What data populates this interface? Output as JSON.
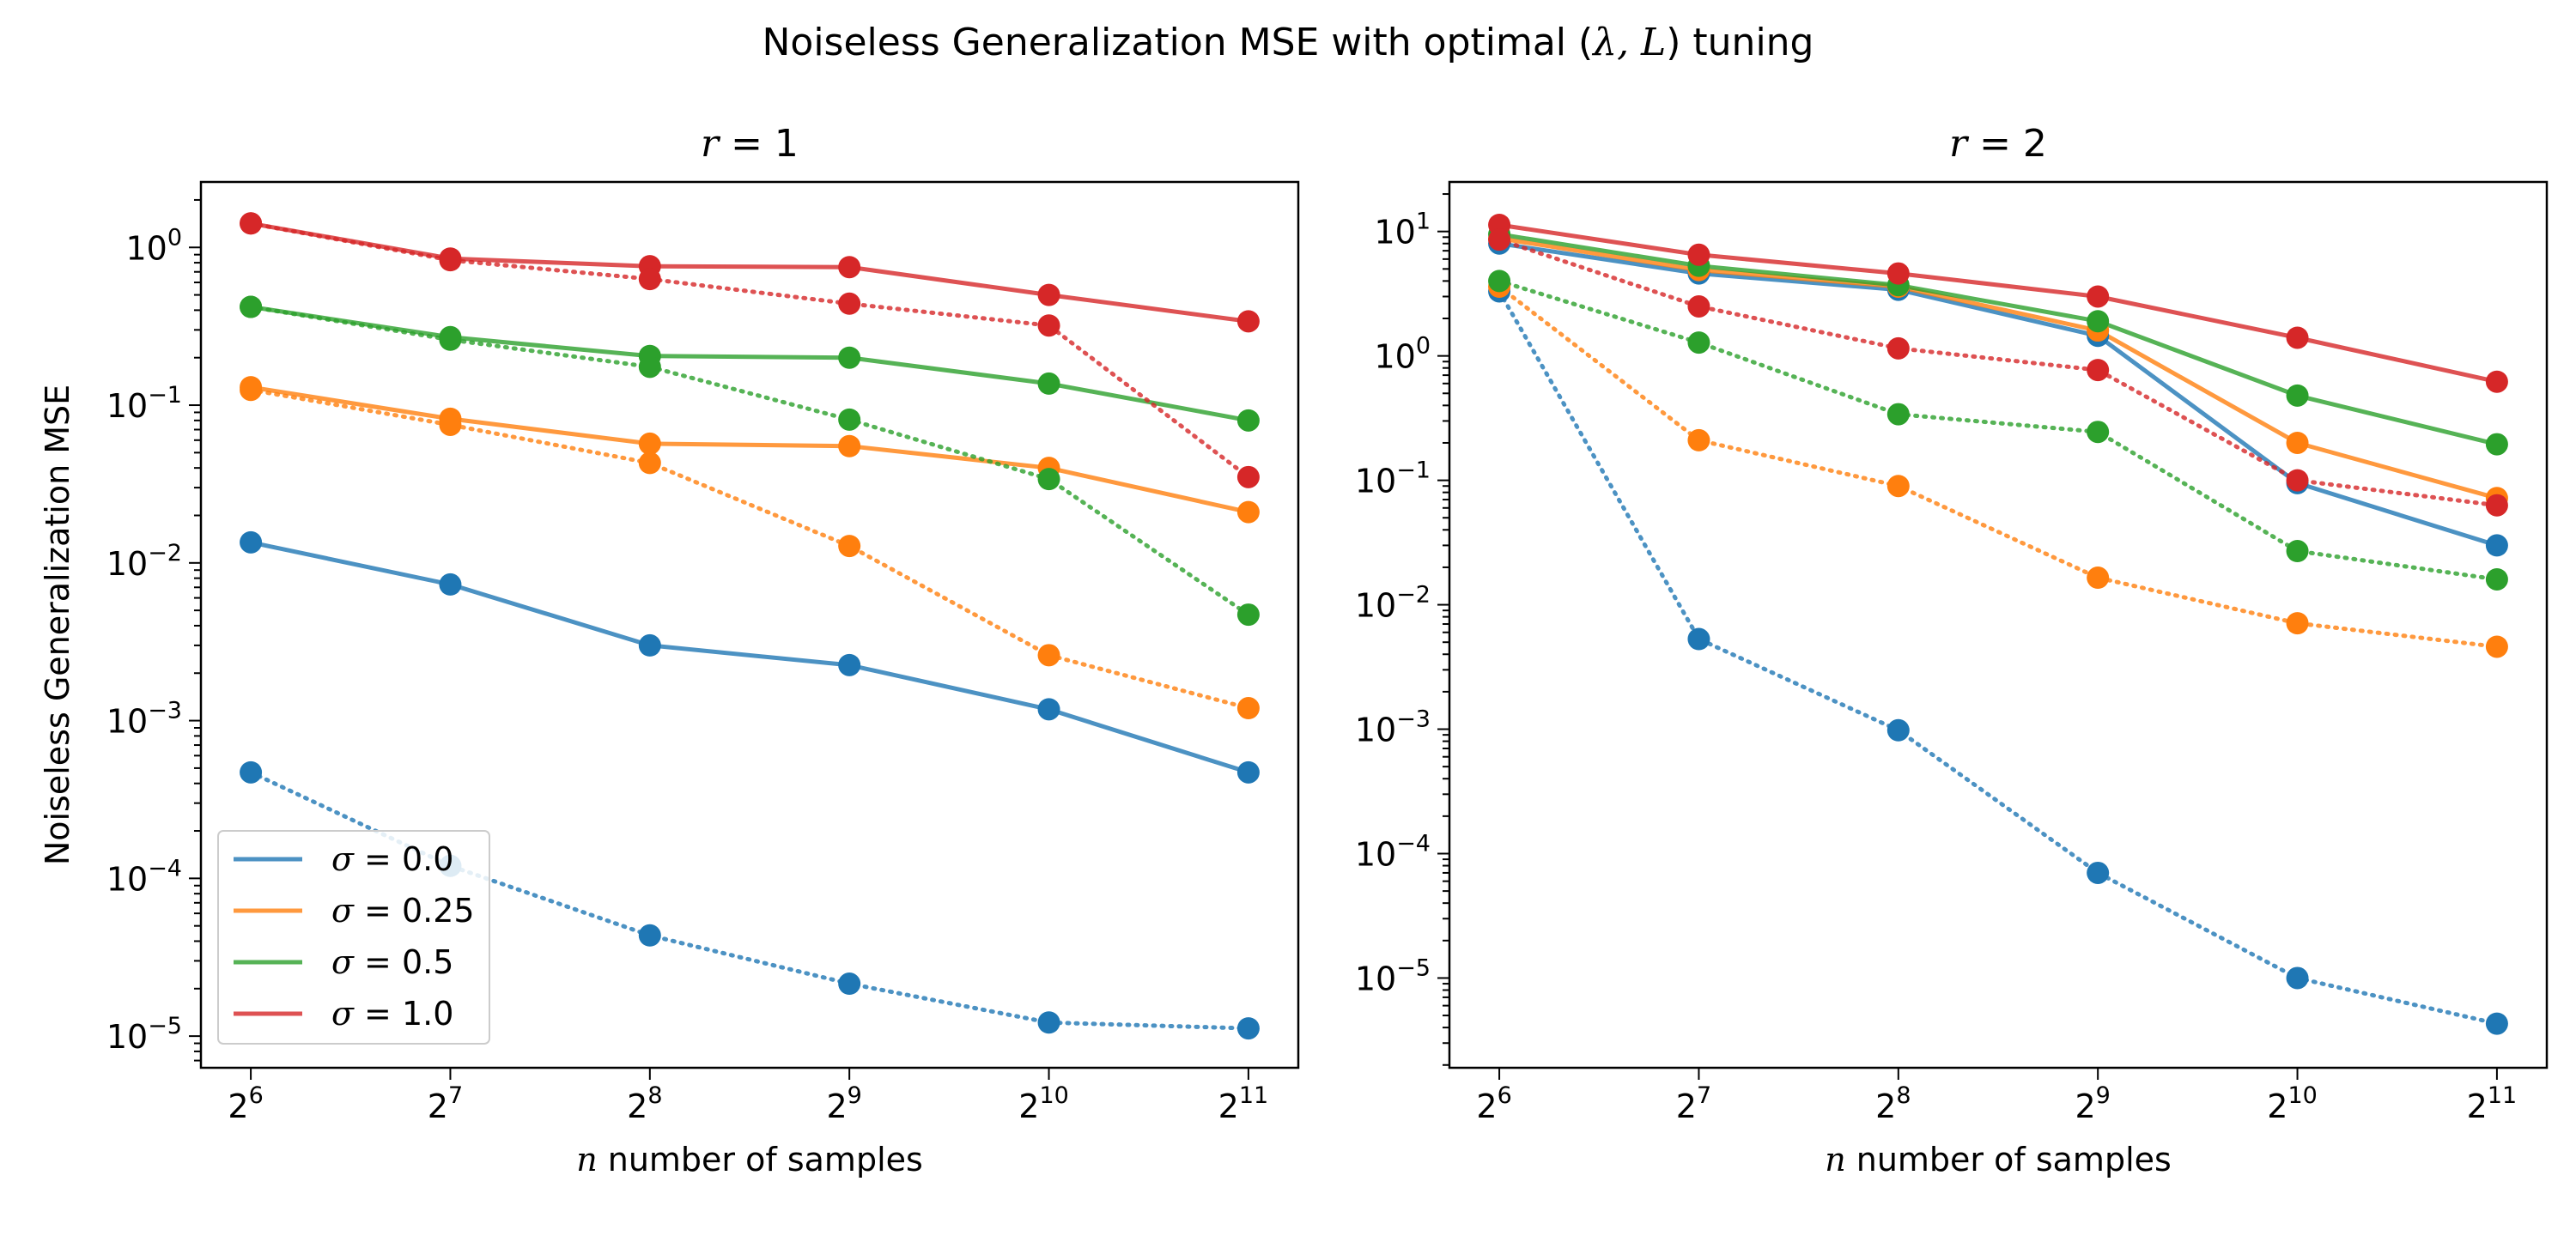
{
  "figure": {
    "suptitle_pre": "Noiseless Generalization MSE with optimal (",
    "suptitle_mid": "λ, L",
    "suptitle_post": ") tuning"
  },
  "chart_data": [
    {
      "type": "line",
      "title_var": "r",
      "title_eq": " = 1",
      "xlabel_var": "n",
      "xlabel_rest": " number of samples",
      "ylabel": "Noiseless Generalization MSE",
      "yscale": "log",
      "ylim": [
        6.3e-06,
        2.6
      ],
      "x_exponents": [
        6,
        7,
        8,
        9,
        10,
        11
      ],
      "y_tick_exponents": [
        -5,
        -4,
        -3,
        -2,
        -1,
        0
      ],
      "xscale": "log2",
      "grid": false,
      "legend_position": "lower-left",
      "legend": [
        {
          "label": " = 0.0",
          "color": "#1f77b4"
        },
        {
          "label": " = 0.25",
          "color": "#ff7f0e"
        },
        {
          "label": " = 0.5",
          "color": "#2ca02c"
        },
        {
          "label": " = 1.0",
          "color": "#d62728"
        }
      ],
      "series": [
        {
          "sigma": 0.0,
          "style": "solid",
          "color": "#1f77b4",
          "values": [
            0.0135,
            0.0073,
            0.003,
            0.00225,
            0.00118,
            0.00047
          ]
        },
        {
          "sigma": 0.25,
          "style": "solid",
          "color": "#ff7f0e",
          "values": [
            0.13,
            0.082,
            0.057,
            0.055,
            0.04,
            0.021
          ]
        },
        {
          "sigma": 0.5,
          "style": "solid",
          "color": "#2ca02c",
          "values": [
            0.42,
            0.27,
            0.205,
            0.2,
            0.137,
            0.08
          ]
        },
        {
          "sigma": 1.0,
          "style": "solid",
          "color": "#d62728",
          "values": [
            1.42,
            0.85,
            0.76,
            0.75,
            0.5,
            0.34
          ]
        },
        {
          "sigma": 0.0,
          "style": "dotted",
          "color": "#1f77b4",
          "values": [
            0.00047,
            0.00012,
            4.35e-05,
            2.15e-05,
            1.22e-05,
            1.12e-05
          ]
        },
        {
          "sigma": 0.25,
          "style": "dotted",
          "color": "#ff7f0e",
          "values": [
            0.125,
            0.075,
            0.043,
            0.0128,
            0.0026,
            0.0012
          ]
        },
        {
          "sigma": 0.5,
          "style": "dotted",
          "color": "#2ca02c",
          "values": [
            0.42,
            0.26,
            0.175,
            0.081,
            0.034,
            0.0047
          ]
        },
        {
          "sigma": 1.0,
          "style": "dotted",
          "color": "#d62728",
          "values": [
            1.42,
            0.83,
            0.63,
            0.44,
            0.32,
            0.035
          ]
        }
      ]
    },
    {
      "type": "line",
      "title_var": "r",
      "title_eq": " = 2",
      "xlabel_var": "n",
      "xlabel_rest": " number of samples",
      "ylabel": "",
      "yscale": "log",
      "ylim": [
        1.9e-06,
        25
      ],
      "x_exponents": [
        6,
        7,
        8,
        9,
        10,
        11
      ],
      "y_tick_exponents": [
        -5,
        -4,
        -3,
        -2,
        -1,
        0,
        1
      ],
      "xscale": "log2",
      "grid": false,
      "series": [
        {
          "sigma": 0.0,
          "style": "solid",
          "color": "#1f77b4",
          "values": [
            8.0,
            4.6,
            3.4,
            1.45,
            0.095,
            0.03
          ]
        },
        {
          "sigma": 0.25,
          "style": "solid",
          "color": "#ff7f0e",
          "values": [
            8.8,
            4.9,
            3.6,
            1.6,
            0.2,
            0.072
          ]
        },
        {
          "sigma": 0.5,
          "style": "solid",
          "color": "#2ca02c",
          "values": [
            9.5,
            5.3,
            3.7,
            1.9,
            0.48,
            0.195
          ]
        },
        {
          "sigma": 1.0,
          "style": "solid",
          "color": "#d62728",
          "values": [
            11.3,
            6.5,
            4.6,
            3.0,
            1.4,
            0.62
          ]
        },
        {
          "sigma": 0.0,
          "style": "dotted",
          "color": "#1f77b4",
          "values": [
            3.3,
            0.0053,
            0.00098,
            7e-05,
            1e-05,
            4.3e-06
          ]
        },
        {
          "sigma": 0.25,
          "style": "dotted",
          "color": "#ff7f0e",
          "values": [
            3.6,
            0.21,
            0.09,
            0.0165,
            0.0071,
            0.0046
          ]
        },
        {
          "sigma": 0.5,
          "style": "dotted",
          "color": "#2ca02c",
          "values": [
            4.0,
            1.28,
            0.34,
            0.245,
            0.027,
            0.016
          ]
        },
        {
          "sigma": 1.0,
          "style": "dotted",
          "color": "#d62728",
          "values": [
            8.6,
            2.5,
            1.15,
            0.77,
            0.1,
            0.063
          ]
        }
      ]
    }
  ]
}
